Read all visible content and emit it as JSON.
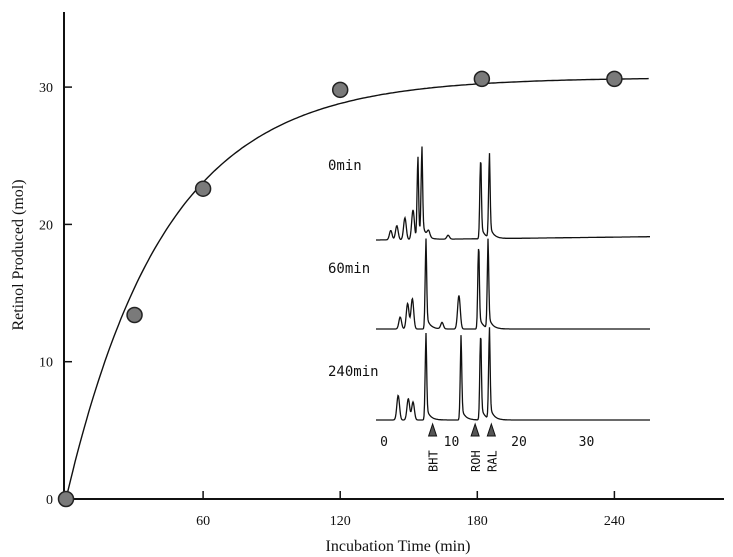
{
  "chart_data": {
    "type": "scatter",
    "title": "",
    "xlabel": "Incubation Time (min)",
    "ylabel": "Retinol Produced (mol)",
    "xlim": [
      0,
      320
    ],
    "ylim": [
      0,
      36
    ],
    "x_ticks": [
      "60",
      "120",
      "180",
      "240"
    ],
    "y_ticks": [
      "0",
      "10",
      "20",
      "30"
    ],
    "grid": false,
    "series": [
      {
        "points": [
          {
            "x": 0,
            "y": 0
          },
          {
            "x": 30,
            "y": 13.4
          },
          {
            "x": 60,
            "y": 22.6
          },
          {
            "x": 120,
            "y": 29.8
          },
          {
            "x": 182,
            "y": 30.6
          },
          {
            "x": 240,
            "y": 30.6
          }
        ],
        "fit_curve": true
      }
    ],
    "inset": {
      "type": "line",
      "description_labels": [
        "0min",
        "60min",
        "240min"
      ],
      "x_ticks": [
        "0",
        "10",
        "20",
        "30"
      ],
      "markers": [
        "BHT",
        "ROH",
        "RAL"
      ],
      "marker_x": [
        7.2,
        13.5,
        15.9
      ],
      "traces": [
        {
          "label": "0min",
          "peaks": [
            {
              "x": 1.0,
              "h": 0.12
            },
            {
              "x": 1.9,
              "h": 0.18
            },
            {
              "x": 3.1,
              "h": 0.28
            },
            {
              "x": 4.3,
              "h": 0.38
            },
            {
              "x": 5.0,
              "h": 0.95
            },
            {
              "x": 5.6,
              "h": 1.0
            },
            {
              "x": 6.6,
              "h": 0.08
            },
            {
              "x": 9.5,
              "h": 0.05
            },
            {
              "x": 14.3,
              "h": 0.98
            },
            {
              "x": 15.6,
              "h": 0.95
            }
          ]
        },
        {
          "label": "60min",
          "peaks": [
            {
              "x": 2.4,
              "h": 0.15
            },
            {
              "x": 3.5,
              "h": 0.32
            },
            {
              "x": 4.2,
              "h": 0.38
            },
            {
              "x": 6.2,
              "h": 0.98
            },
            {
              "x": 8.6,
              "h": 0.08
            },
            {
              "x": 11.1,
              "h": 0.42
            },
            {
              "x": 14.0,
              "h": 1.0
            },
            {
              "x": 15.4,
              "h": 0.95
            }
          ]
        },
        {
          "label": "240min",
          "peaks": [
            {
              "x": 2.1,
              "h": 0.3
            },
            {
              "x": 3.6,
              "h": 0.26
            },
            {
              "x": 4.3,
              "h": 0.22
            },
            {
              "x": 6.2,
              "h": 0.92
            },
            {
              "x": 11.4,
              "h": 0.88
            },
            {
              "x": 14.3,
              "h": 1.0
            },
            {
              "x": 15.6,
              "h": 0.98
            }
          ]
        }
      ]
    }
  },
  "colors": {
    "axis": "#111111",
    "curve": "#111111",
    "marker_fill": "#7a7a7a",
    "marker_edge": "#222222",
    "trace": "#111111"
  }
}
